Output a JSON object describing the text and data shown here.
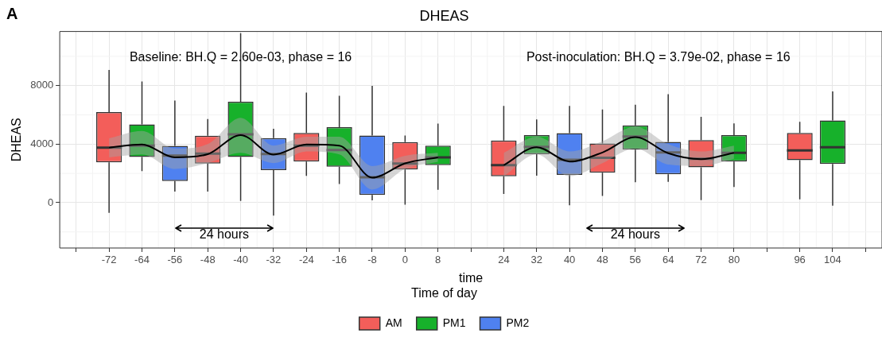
{
  "chart_data": {
    "type": "box",
    "title": "DHEAS",
    "xlabel": "time",
    "ylabel": "DHEAS",
    "legend_title": "Time of day",
    "legend": "bottom",
    "grid": true,
    "marker": "none",
    "line_style": "solid",
    "categories": [
      null,
      "-72",
      "-64",
      "-56",
      "-48",
      "-40",
      "-32",
      "-24",
      "-16",
      "-8",
      "0",
      "8",
      null,
      "24",
      "32",
      "40",
      "48",
      "56",
      "64",
      "72",
      "80",
      null,
      "96",
      "104",
      null
    ],
    "ylim": [
      -3100,
      11700
    ],
    "yticks": [
      0,
      4000,
      8000
    ],
    "annotations": [
      "A",
      "Baseline: BH.Q = 2.60e-03, phase = 16",
      "Post-inoculation: BH.Q = 3.79e-02, phase = 16",
      "24 hours",
      "24 hours"
    ],
    "series": [
      {
        "name": "AM",
        "color": "#f35e5a",
        "boxes": [
          null,
          {
            "low": -690,
            "q1": 2760,
            "median": 3760,
            "q3": 6190,
            "high": 9070
          },
          null,
          null,
          {
            "low": 760,
            "q1": 2670,
            "median": 3350,
            "q3": 4570,
            "high": 5720
          },
          null,
          null,
          {
            "low": 1830,
            "q1": 2810,
            "median": 3900,
            "q3": 4760,
            "high": 7520
          },
          null,
          null,
          {
            "low": -140,
            "q1": 2260,
            "median": 2670,
            "q3": 4140,
            "high": 4590
          },
          null,
          null,
          {
            "low": 600,
            "q1": 1810,
            "median": 2560,
            "q3": 4250,
            "high": 6610
          },
          null,
          null,
          {
            "low": 460,
            "q1": 2050,
            "median": 3060,
            "q3": 4050,
            "high": 6370
          },
          null,
          null,
          {
            "low": 180,
            "q1": 2420,
            "median": 3000,
            "q3": 4270,
            "high": 5870
          },
          null,
          null,
          {
            "low": 230,
            "q1": 2900,
            "median": 3570,
            "q3": 4770,
            "high": 5530
          },
          null,
          null
        ]
      },
      {
        "name": "PM1",
        "color": "#17b12b",
        "boxes": [
          null,
          null,
          {
            "low": 2160,
            "q1": 3120,
            "median": 3900,
            "q3": 5350,
            "high": 8280
          },
          null,
          null,
          {
            "low": 120,
            "q1": 3120,
            "median": 4670,
            "q3": 6900,
            "high": 11580
          },
          null,
          null,
          {
            "low": 1280,
            "q1": 2450,
            "median": 3600,
            "q3": 5160,
            "high": 7310
          },
          null,
          null,
          {
            "low": 880,
            "q1": 2570,
            "median": 3100,
            "q3": 3900,
            "high": 5400
          },
          null,
          null,
          {
            "low": 1850,
            "q1": 3310,
            "median": 3810,
            "q3": 4610,
            "high": 5690
          },
          null,
          null,
          {
            "low": 1390,
            "q1": 3630,
            "median": 4520,
            "q3": 5280,
            "high": 6690
          },
          null,
          null,
          {
            "low": 1070,
            "q1": 2810,
            "median": 3400,
            "q3": 4610,
            "high": 5410
          },
          null,
          null,
          {
            "low": -210,
            "q1": 2650,
            "median": 3790,
            "q3": 5620,
            "high": 7610
          },
          null
        ]
      },
      {
        "name": "PM2",
        "color": "#4f81f0",
        "boxes": [
          null,
          null,
          null,
          {
            "low": 760,
            "q1": 1480,
            "median": 3210,
            "q3": 3880,
            "high": 6980
          },
          null,
          null,
          {
            "low": -880,
            "q1": 2220,
            "median": 3330,
            "q3": 4410,
            "high": 5050
          },
          null,
          null,
          {
            "low": 160,
            "q1": 530,
            "median": 1740,
            "q3": 4590,
            "high": 7980
          },
          null,
          null,
          null,
          null,
          null,
          {
            "low": -180,
            "q1": 1900,
            "median": 2930,
            "q3": 4750,
            "high": 6610
          },
          null,
          null,
          {
            "low": 1420,
            "q1": 1940,
            "median": 3430,
            "q3": 4160,
            "high": 7410
          },
          null,
          null,
          null,
          null,
          null,
          null
        ]
      },
      {
        "type": "line",
        "color": "#000000",
        "values": [
          null,
          3760,
          3980,
          3090,
          3310,
          4620,
          3290,
          3980,
          3900,
          1710,
          2690,
          3090,
          null,
          2560,
          3790,
          2810,
          3430,
          4480,
          3380,
          2970,
          3410,
          null,
          null,
          null,
          null
        ],
        "lower": [
          null,
          3100,
          3300,
          2300,
          2700,
          3400,
          2700,
          3500,
          3300,
          900,
          2300,
          2800,
          null,
          1800,
          3300,
          1800,
          2700,
          3700,
          2600,
          2500,
          3000,
          null,
          null,
          null,
          null
        ],
        "upper": [
          null,
          4400,
          4900,
          3700,
          4000,
          5800,
          3900,
          4500,
          4500,
          2500,
          3200,
          3400,
          null,
          3400,
          4500,
          3500,
          4200,
          5200,
          4000,
          3500,
          3900,
          null,
          null,
          null,
          null
        ]
      }
    ]
  }
}
